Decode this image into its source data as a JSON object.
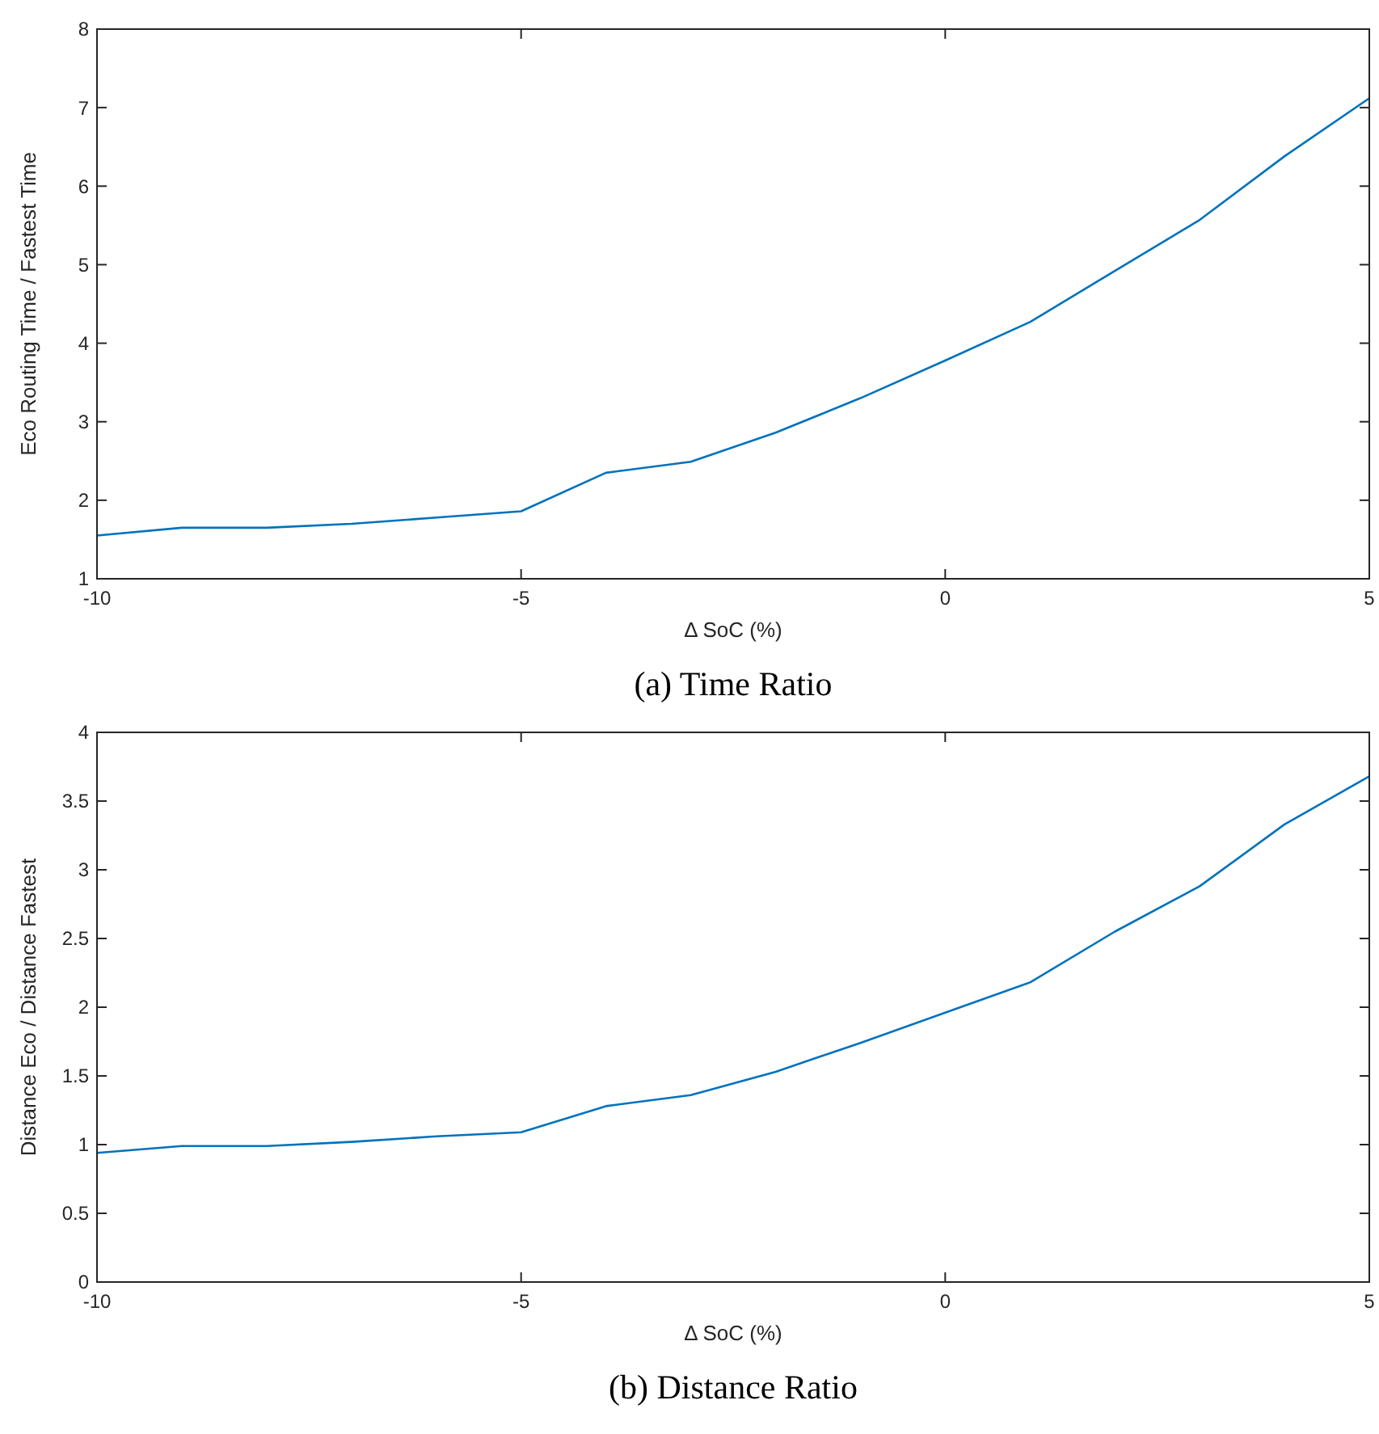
{
  "chart_data": [
    {
      "type": "line",
      "title": "(a) Time Ratio",
      "xlabel": "Δ SoC (%)",
      "ylabel": "Eco Routing Time / Fastest Time",
      "x": [
        -10,
        -9,
        -8,
        -7,
        -6,
        -5,
        -4,
        -3,
        -2,
        -1,
        0,
        1,
        2,
        3,
        4,
        5
      ],
      "series": [
        {
          "color": "#0072bd",
          "values": [
            1.55,
            1.65,
            1.65,
            1.7,
            1.78,
            1.86,
            2.35,
            2.49,
            2.86,
            3.3,
            3.78,
            4.27,
            4.92,
            5.57,
            6.38,
            7.12
          ]
        }
      ],
      "xlim": [
        -10,
        5
      ],
      "xticks": [
        -10,
        -5,
        0,
        5
      ],
      "ylim": [
        1,
        8
      ],
      "yticks": [
        1,
        2,
        3,
        4,
        5,
        6,
        7,
        8
      ],
      "grid": false
    },
    {
      "type": "line",
      "title": "(b) Distance Ratio",
      "xlabel": "Δ SoC (%)",
      "ylabel": "Distance Eco / Distance Fastest",
      "x": [
        -10,
        -9,
        -8,
        -7,
        -6,
        -5,
        -4,
        -3,
        -2,
        -1,
        0,
        1,
        2,
        3,
        4,
        5
      ],
      "series": [
        {
          "color": "#0072bd",
          "values": [
            0.94,
            0.99,
            0.99,
            1.02,
            1.06,
            1.09,
            1.28,
            1.36,
            1.53,
            1.74,
            1.96,
            2.18,
            2.55,
            2.88,
            3.33,
            3.68
          ]
        }
      ],
      "xlim": [
        -10,
        5
      ],
      "xticks": [
        -10,
        -5,
        0,
        5
      ],
      "ylim": [
        0,
        4
      ],
      "yticks": [
        0,
        0.5,
        1,
        1.5,
        2,
        2.5,
        3,
        3.5,
        4
      ],
      "grid": false
    }
  ]
}
